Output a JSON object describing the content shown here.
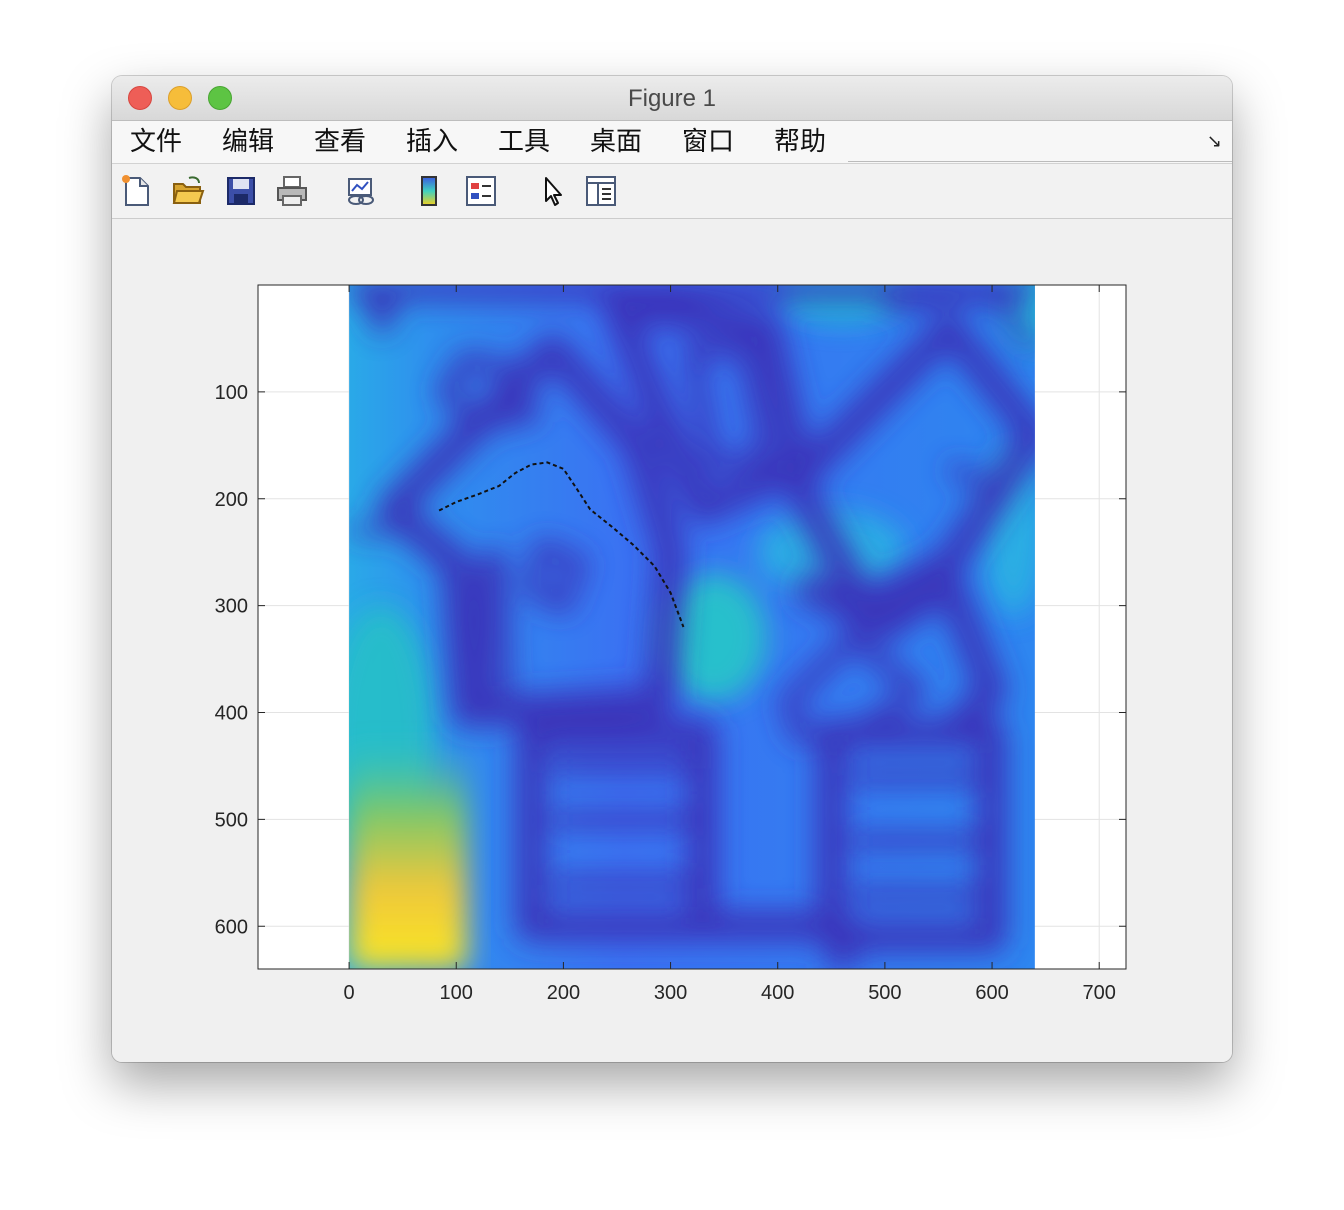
{
  "window": {
    "title": "Figure 1"
  },
  "menubar": {
    "items": [
      "文件",
      "编辑",
      "查看",
      "插入",
      "工具",
      "桌面",
      "窗口",
      "帮助"
    ],
    "undock_glyph": "↘"
  },
  "toolbar": {
    "buttons": [
      {
        "name": "new-figure-icon"
      },
      {
        "name": "open-file-icon"
      },
      {
        "name": "save-icon"
      },
      {
        "name": "print-icon"
      },
      {
        "name": "link-plot-icon"
      },
      {
        "name": "insert-colorbar-icon"
      },
      {
        "name": "insert-legend-icon"
      },
      {
        "name": "edit-plot-icon"
      },
      {
        "name": "property-inspector-icon"
      }
    ]
  },
  "chart_data": {
    "type": "heatmap",
    "title": "",
    "xlabel": "",
    "ylabel": "",
    "xlim": [
      -85,
      725
    ],
    "ylim": [
      640,
      0
    ],
    "x_ticks": [
      0,
      100,
      200,
      300,
      400,
      500,
      600,
      700
    ],
    "y_ticks": [
      100,
      200,
      300,
      400,
      500,
      600
    ],
    "grid": true,
    "colormap": "parula",
    "image_extent": {
      "x": [
        0,
        640
      ],
      "y": [
        0,
        640
      ]
    },
    "path_line_style": "dashed black",
    "path": {
      "x": [
        84,
        100,
        120,
        140,
        155,
        170,
        185,
        200,
        212,
        225,
        245,
        265,
        285,
        300,
        312
      ],
      "y": [
        211,
        203,
        196,
        188,
        176,
        168,
        166,
        172,
        190,
        210,
        226,
        243,
        263,
        288,
        320
      ]
    }
  }
}
